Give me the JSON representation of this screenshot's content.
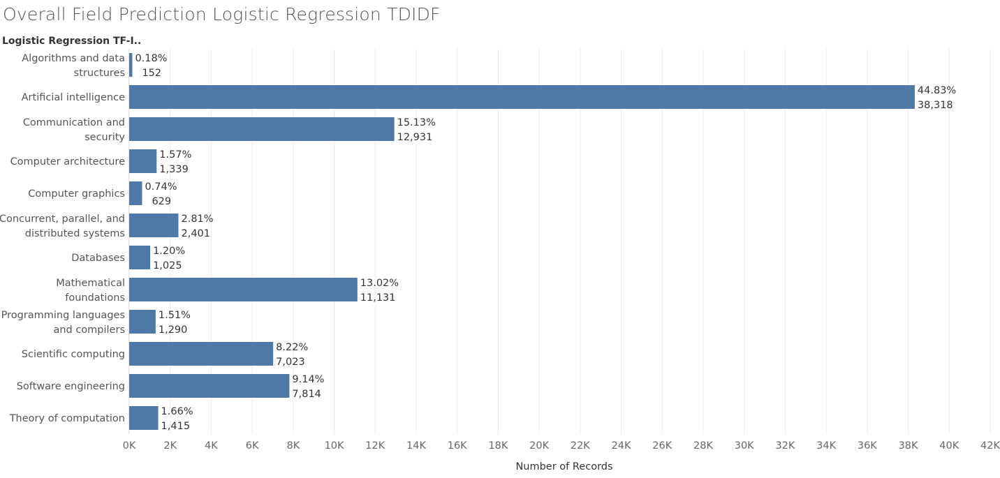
{
  "title": "Overall Field Prediction Logistic Regression TDIDF",
  "row_header": "Logistic Regression TF-I..",
  "chart_data": {
    "type": "bar",
    "orientation": "horizontal",
    "title": "Overall Field Prediction Logistic Regression TDIDF",
    "xlabel": "Number of Records",
    "ylabel": "Logistic Regression TF-I..",
    "xlim": [
      0,
      42000
    ],
    "x_ticks": [
      "0K",
      "2K",
      "4K",
      "6K",
      "8K",
      "10K",
      "12K",
      "14K",
      "16K",
      "18K",
      "20K",
      "22K",
      "24K",
      "26K",
      "28K",
      "30K",
      "32K",
      "34K",
      "36K",
      "38K",
      "40K",
      "42K"
    ],
    "grid": "vertical",
    "bar_color": "#4e79a7",
    "categories": [
      [
        "Algorithms and data",
        "structures"
      ],
      [
        "Artificial intelligence"
      ],
      [
        "Communication and",
        "security"
      ],
      [
        "Computer architecture"
      ],
      [
        "Computer graphics"
      ],
      [
        "Concurrent, parallel, and",
        "distributed systems"
      ],
      [
        "Databases"
      ],
      [
        "Mathematical",
        "foundations"
      ],
      [
        "Programming languages",
        "and compilers"
      ],
      [
        "Scientific computing"
      ],
      [
        "Software engineering"
      ],
      [
        "Theory of computation"
      ]
    ],
    "values": [
      152,
      38318,
      12931,
      1339,
      629,
      2401,
      1025,
      11131,
      1290,
      7023,
      7814,
      1415
    ],
    "value_labels": [
      "152",
      "38,318",
      "12,931",
      "1,339",
      "629",
      "2,401",
      "1,025",
      "11,131",
      "1,290",
      "7,023",
      "7,814",
      "1,415"
    ],
    "percent_labels": [
      "0.18%",
      "44.83%",
      "15.13%",
      "1.57%",
      "0.74%",
      "2.81%",
      "1.20%",
      "13.02%",
      "1.51%",
      "8.22%",
      "9.14%",
      "1.66%"
    ]
  }
}
